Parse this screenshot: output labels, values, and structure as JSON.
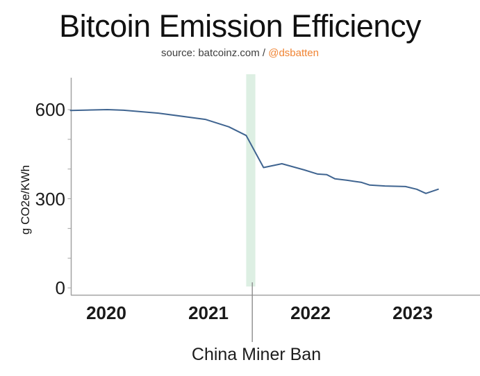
{
  "header": {
    "title": "Bitcoin Emission Efficiency",
    "subtitle_prefix": "source: batcoinz.com / ",
    "subtitle_handle": "@dsbatten"
  },
  "chart_data": {
    "type": "line",
    "title": "Bitcoin Emission Efficiency",
    "xlabel": "",
    "ylabel": "g CO2e/KWh",
    "x_ticks": [
      "2020",
      "2021",
      "2022",
      "2023"
    ],
    "y_ticks": [
      600,
      300,
      0
    ],
    "y_minor_tick_step": 100,
    "xlim": [
      2019.65,
      2023.66
    ],
    "ylim": [
      0,
      707
    ],
    "grid": false,
    "legend": "none",
    "series": [
      {
        "name": "g CO2e/KWh",
        "x": [
          2019.65,
          2020.01,
          2020.17,
          2020.51,
          2020.97,
          2021.2,
          2021.37,
          2021.54,
          2021.72,
          2021.94,
          2022.07,
          2022.16,
          2022.24,
          2022.36,
          2022.5,
          2022.58,
          2022.73,
          2022.93,
          2023.04,
          2023.13,
          2023.25
        ],
        "y": [
          597,
          600,
          598,
          588,
          567,
          542,
          513,
          405,
          418,
          397,
          383,
          381,
          367,
          362,
          355,
          346,
          343,
          341,
          332,
          318,
          332
        ]
      }
    ],
    "annotation": {
      "label": "China Miner Ban",
      "line_x": 2021.43,
      "band_x0": 2021.37,
      "band_x1": 2021.46
    }
  },
  "colors": {
    "line": "#3F6490",
    "band": "#DDEFE3",
    "axis": "#A3A3A3",
    "annotation_line": "#8C8C8C",
    "handle_orange": "#F08332",
    "text": "#111111",
    "subtitle_text": "#3D3D3D"
  }
}
